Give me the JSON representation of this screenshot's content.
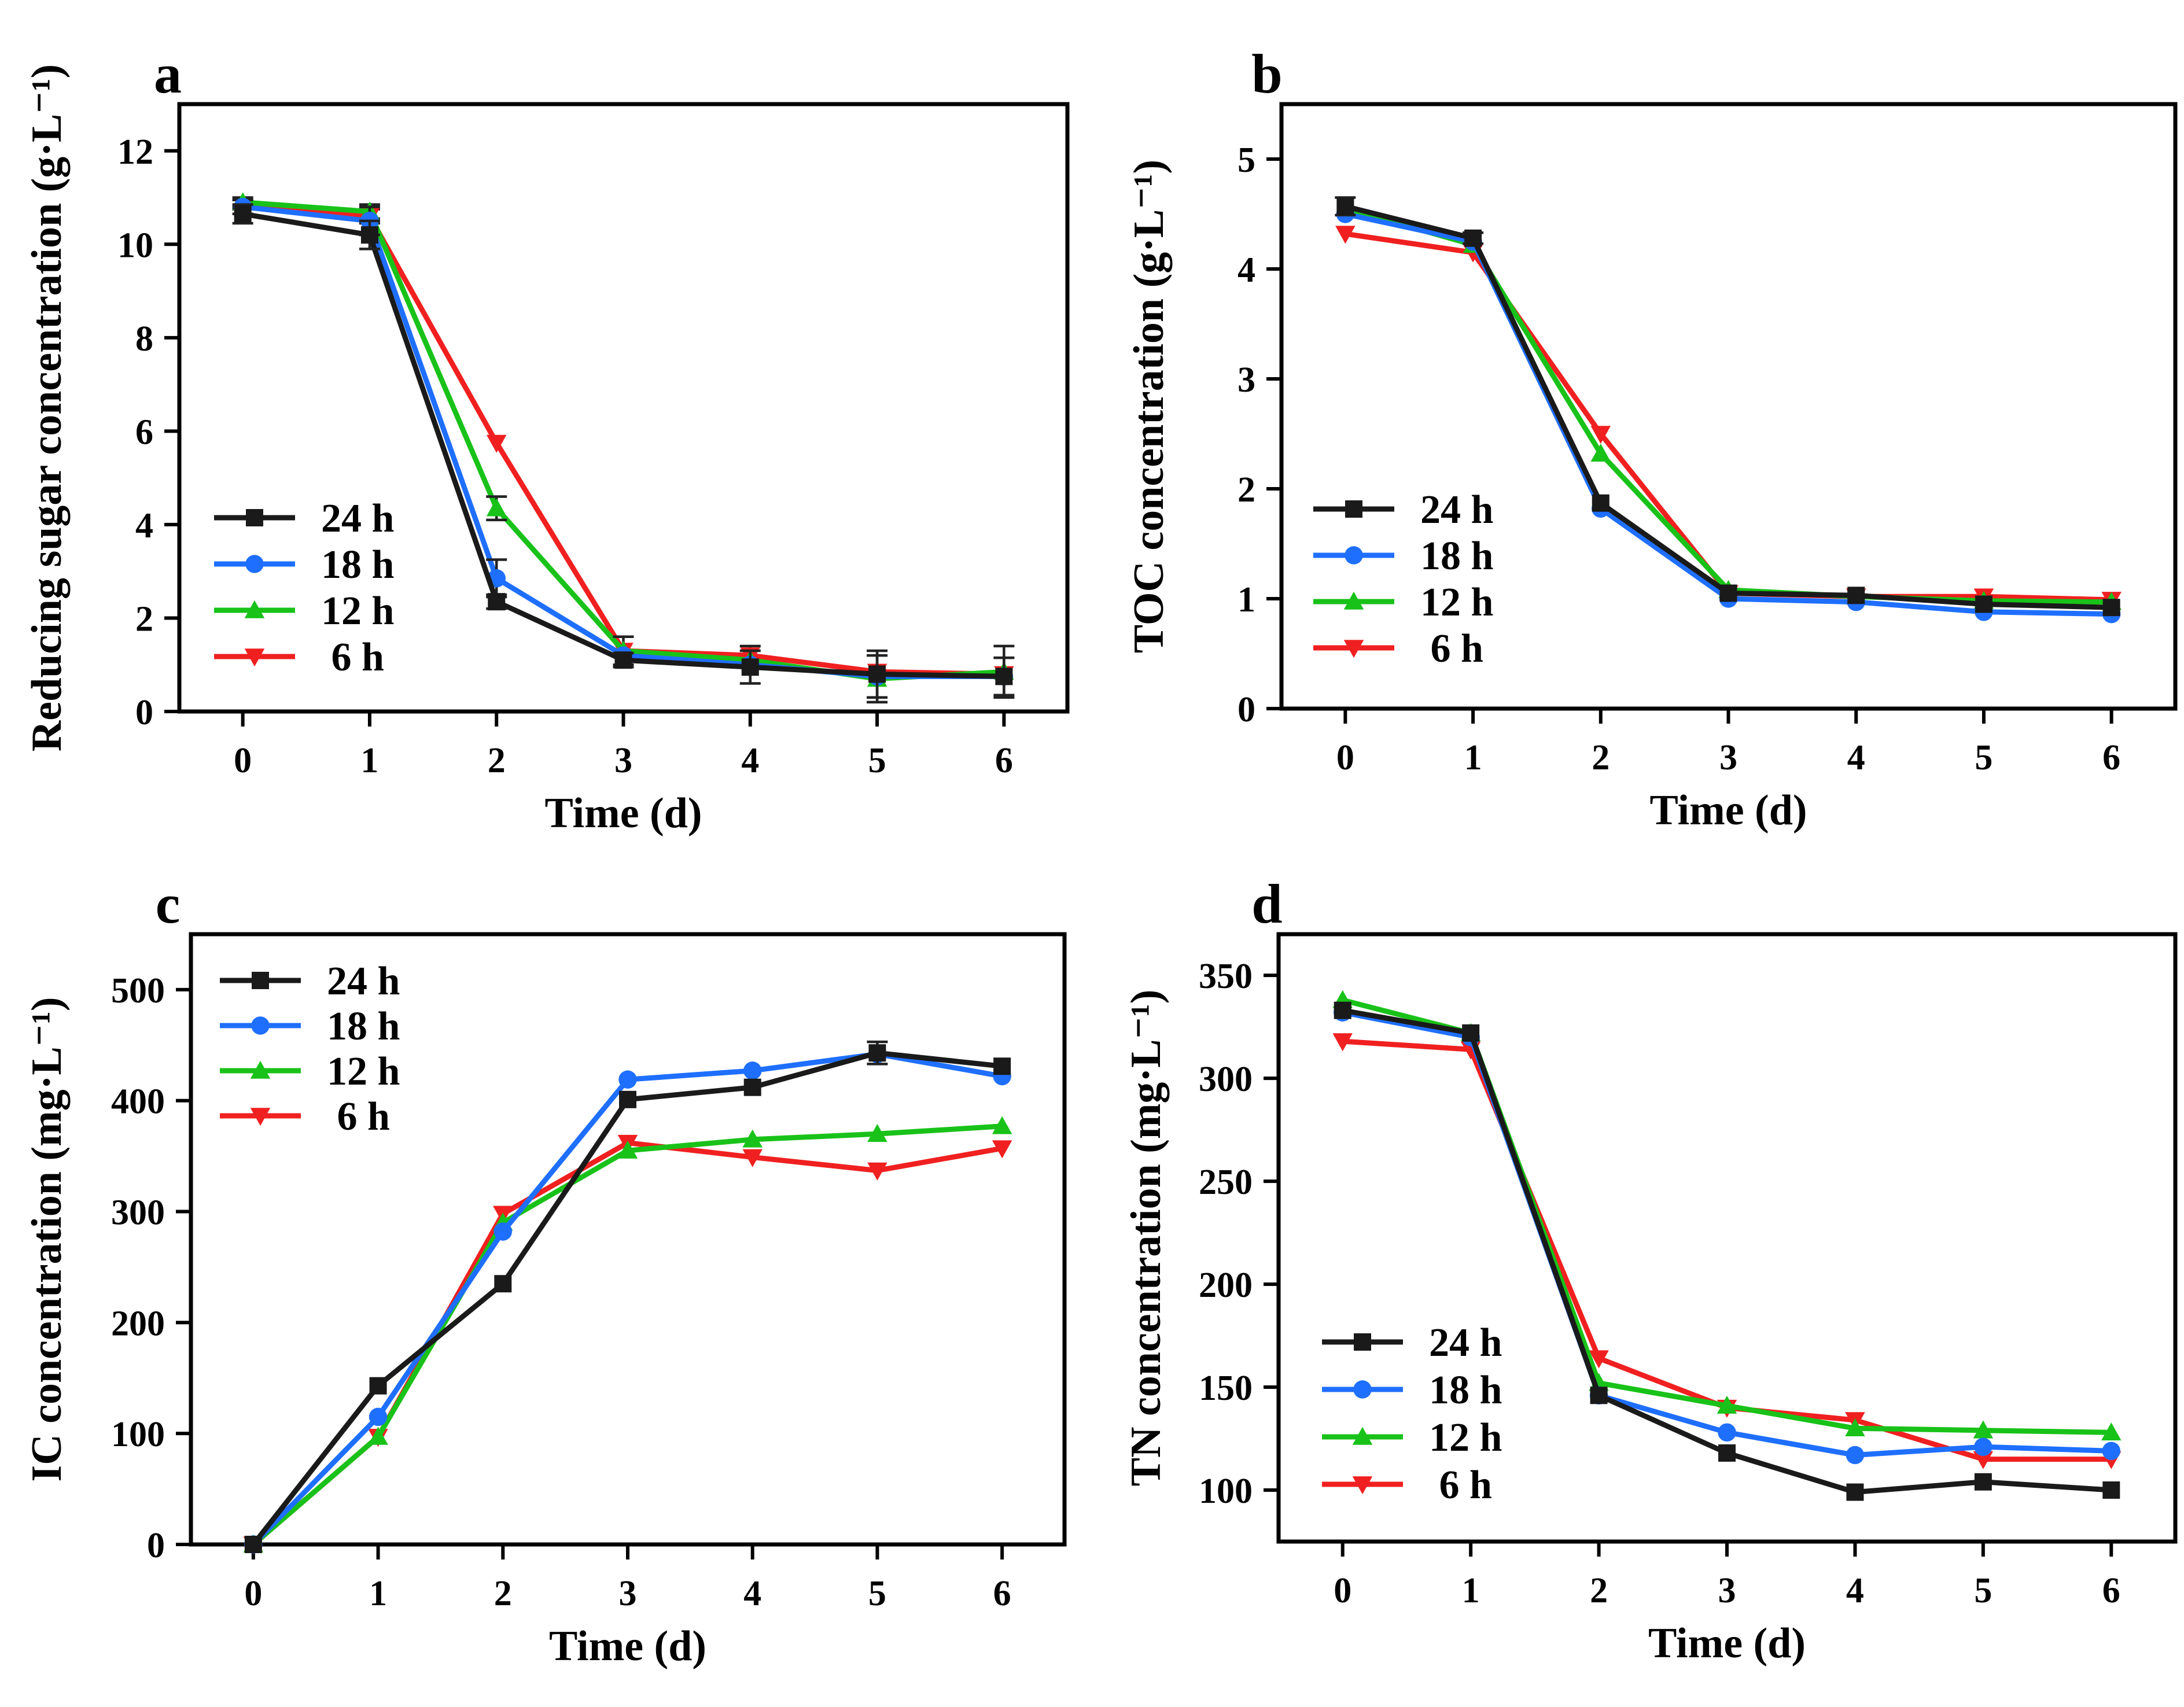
{
  "chart_data": [
    {
      "panel": "a",
      "type": "line",
      "xlabel": "Time (d)",
      "ylabel": "Reducing sugar concentration (g·L⁻¹)",
      "x": [
        0,
        1,
        2,
        3,
        4,
        5,
        6
      ],
      "xticks": [
        "0",
        "1",
        "2",
        "3",
        "4",
        "5",
        "6"
      ],
      "ylim": [
        0,
        13
      ],
      "yticks": [
        0,
        2,
        4,
        6,
        8,
        10,
        12
      ],
      "legend_position": "bottom-left",
      "series": [
        {
          "name": "24 h",
          "marker": "square",
          "values": [
            10.65,
            10.2,
            2.35,
            1.1,
            0.95,
            0.8,
            0.75
          ],
          "errors": [
            0.2,
            0.3,
            0.15,
            0.15,
            0.35,
            0.5,
            0.4
          ]
        },
        {
          "name": "18 h",
          "marker": "circle",
          "values": [
            10.8,
            10.5,
            2.85,
            1.2,
            1.0,
            0.75,
            0.75
          ],
          "errors": [
            0.15,
            0.3,
            0.4,
            0,
            0,
            0,
            0
          ]
        },
        {
          "name": "12 h",
          "marker": "triangle-up",
          "values": [
            10.9,
            10.7,
            4.35,
            1.3,
            1.1,
            0.7,
            0.85
          ],
          "errors": [
            0.1,
            0.15,
            0.25,
            0.3,
            0,
            0.5,
            0.55
          ]
        },
        {
          "name": " 6 h",
          "marker": "triangle-down",
          "values": [
            10.85,
            10.6,
            5.75,
            1.3,
            1.2,
            0.85,
            0.8
          ],
          "errors": [
            0.1,
            0.15,
            0,
            0,
            0.2,
            0,
            0
          ]
        }
      ]
    },
    {
      "panel": "b",
      "type": "line",
      "xlabel": "Time (d)",
      "ylabel": "TOC concentration (g·L⁻¹)",
      "x": [
        0,
        1,
        2,
        3,
        4,
        5,
        6
      ],
      "xticks": [
        "0",
        "1",
        "2",
        "3",
        "4",
        "5",
        "6"
      ],
      "ylim": [
        0,
        5.5
      ],
      "yticks": [
        0,
        1,
        2,
        3,
        4,
        5
      ],
      "legend_position": "bottom-left",
      "series": [
        {
          "name": "24 h",
          "marker": "square",
          "values": [
            4.57,
            4.28,
            1.87,
            1.05,
            1.03,
            0.95,
            0.92
          ],
          "errors": [
            0.08,
            0.05,
            0,
            0,
            0,
            0,
            0
          ]
        },
        {
          "name": "18 h",
          "marker": "circle",
          "values": [
            4.5,
            4.25,
            1.82,
            1.0,
            0.97,
            0.88,
            0.86
          ],
          "errors": [
            0,
            0,
            0,
            0,
            0,
            0,
            0
          ]
        },
        {
          "name": "12 h",
          "marker": "triangle-up",
          "values": [
            4.55,
            4.22,
            2.32,
            1.08,
            1.02,
            0.98,
            0.97
          ],
          "errors": [
            0,
            0,
            0,
            0,
            0,
            0,
            0
          ]
        },
        {
          "name": " 6 h",
          "marker": "triangle-down",
          "values": [
            4.32,
            4.15,
            2.5,
            1.05,
            1.02,
            1.02,
            0.99
          ],
          "errors": [
            0,
            0,
            0,
            0,
            0,
            0,
            0
          ]
        }
      ]
    },
    {
      "panel": "c",
      "type": "line",
      "xlabel": "Time (d)",
      "ylabel": "IC concentration (mg·L⁻¹)",
      "x": [
        0,
        1,
        2,
        3,
        4,
        5,
        6
      ],
      "xticks": [
        "0",
        "1",
        "2",
        "3",
        "4",
        "5",
        "6"
      ],
      "ylim": [
        0,
        550
      ],
      "yticks": [
        0,
        100,
        200,
        300,
        400,
        500
      ],
      "legend_position": "top-left",
      "series": [
        {
          "name": "24 h",
          "marker": "square",
          "values": [
            0,
            143,
            235,
            401,
            412,
            443,
            431
          ],
          "errors": [
            0,
            0,
            0,
            0,
            0,
            10,
            0
          ]
        },
        {
          "name": "18 h",
          "marker": "circle",
          "values": [
            0,
            115,
            282,
            419,
            427,
            442,
            422
          ],
          "errors": [
            0,
            0,
            0,
            0,
            0,
            0,
            0
          ]
        },
        {
          "name": "12 h",
          "marker": "triangle-up",
          "values": [
            0,
            97,
            290,
            355,
            365,
            370,
            377
          ],
          "errors": [
            0,
            0,
            0,
            0,
            0,
            0,
            0
          ]
        },
        {
          "name": " 6 h",
          "marker": "triangle-down",
          "values": [
            0,
            97,
            298,
            362,
            349,
            337,
            357
          ],
          "errors": [
            0,
            0,
            0,
            0,
            0,
            0,
            0
          ]
        }
      ]
    },
    {
      "panel": "d",
      "type": "line",
      "xlabel": "Time (d)",
      "ylabel": "TN concentration (mg·L⁻¹)",
      "x": [
        0,
        1,
        2,
        3,
        4,
        5,
        6
      ],
      "xticks": [
        "0",
        "1",
        "2",
        "3",
        "4",
        "5",
        "6"
      ],
      "ylim": [
        75,
        370
      ],
      "yticks": [
        100,
        150,
        200,
        250,
        300,
        350
      ],
      "legend_position": "bottom-left",
      "series": [
        {
          "name": "24 h",
          "marker": "square",
          "values": [
            333,
            322,
            146,
            118,
            99,
            104,
            100
          ],
          "errors": [
            0,
            0,
            0,
            0,
            0,
            0,
            0
          ]
        },
        {
          "name": "18 h",
          "marker": "circle",
          "values": [
            332,
            320,
            146,
            128,
            117,
            121,
            119
          ],
          "errors": [
            0,
            0,
            0,
            0,
            0,
            0,
            0
          ]
        },
        {
          "name": "12 h",
          "marker": "triangle-up",
          "values": [
            338,
            322,
            152,
            141,
            130,
            129,
            128
          ],
          "errors": [
            0,
            0,
            0,
            0,
            0,
            0,
            0
          ]
        },
        {
          "name": " 6 h",
          "marker": "triangle-down",
          "values": [
            318,
            314,
            164,
            140,
            134,
            115,
            115
          ],
          "errors": [
            0,
            0,
            0,
            0,
            0,
            0,
            0
          ]
        }
      ]
    }
  ],
  "colors": {
    "24 h": "#1a1a1a",
    "18 h": "#1f6fff",
    "12 h": "#19c219",
    " 6 h": "#f02020",
    "axis": "#000000"
  }
}
